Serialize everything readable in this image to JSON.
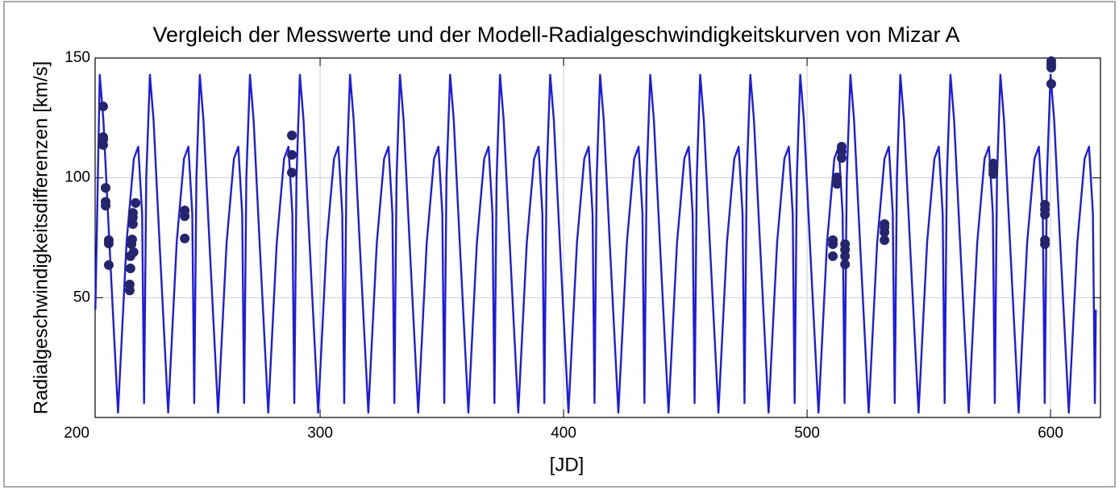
{
  "chart_data": {
    "type": "line-scatter",
    "title": "Vergleich der Messwerte und der Modell-Radialgeschwindigkeitskurven von Mizar A",
    "x_label": "[JD]",
    "y_label": "Radialgeschwindigkeitsdifferenzen [km/s]",
    "xlim": [
      207.6,
      620.5
    ],
    "ylim": [
      0,
      150
    ],
    "xticks": [
      200,
      300,
      400,
      500,
      600
    ],
    "yticks": [
      50,
      100,
      150
    ],
    "grid": true,
    "series": [
      {
        "type": "line",
        "color": "#1c1ce6",
        "x": [
          207.7,
          209.5,
          211,
          213.5,
          217,
          220.5,
          223.5,
          225.3,
          226.9,
          227.7,
          228.6,
          230.1,
          231.6,
          234.1,
          237.6,
          241.1,
          244.1,
          245.9,
          247.5,
          248.3,
          249.2,
          250.6,
          252.1,
          254.6,
          258.1,
          261.6,
          264.6,
          266.4,
          268,
          268.8,
          269.7,
          271.2,
          272.7,
          275.2,
          278.7,
          282.2,
          285.2,
          287,
          288.6,
          289.4,
          290.3,
          291.7,
          293.2,
          295.7,
          299.2,
          302.7,
          305.7,
          307.5,
          309.1,
          309.9,
          310.8,
          312.3,
          313.8,
          316.3,
          319.8,
          323.3,
          326.3,
          328.1,
          329.7,
          330.5,
          331.4,
          332.8,
          334.3,
          336.8,
          340.3,
          343.8,
          346.8,
          348.6,
          350.2,
          351,
          351.9,
          353.4,
          354.9,
          357.4,
          360.9,
          364.4,
          367.4,
          369.2,
          370.8,
          371.6,
          372.5,
          373.9,
          375.4,
          377.9,
          381.4,
          384.9,
          387.9,
          389.7,
          391.3,
          392.1,
          393,
          394.5,
          396,
          398.5,
          402,
          405.5,
          408.5,
          410.3,
          411.9,
          412.7,
          413.6,
          415,
          416.5,
          419,
          422.5,
          426,
          429,
          430.8,
          432.4,
          433.2,
          434.1,
          435.6,
          437.1,
          439.6,
          443.1,
          446.6,
          449.6,
          451.4,
          453,
          453.8,
          454.7,
          456.1,
          457.6,
          460.1,
          463.6,
          467.1,
          470.1,
          471.9,
          473.5,
          474.3,
          475.2,
          476.7,
          478.2,
          480.7,
          484.2,
          487.7,
          490.7,
          492.5,
          494.1,
          494.9,
          495.8,
          497.2,
          498.7,
          501.2,
          504.7,
          508.2,
          511.2,
          513,
          514.6,
          515.4,
          516.3,
          517.8,
          519.3,
          521.8,
          525.3,
          528.8,
          531.8,
          533.6,
          535.2,
          536,
          536.9,
          538.3,
          539.8,
          542.3,
          545.8,
          549.3,
          552.3,
          554.1,
          555.7,
          556.5,
          557.4,
          558.9,
          560.4,
          562.9,
          566.4,
          569.9,
          572.9,
          574.7,
          576.3,
          577.1,
          578,
          579.4,
          580.9,
          583.4,
          586.9,
          590.4,
          593.4,
          595.2,
          596.8,
          597.6,
          598.5,
          600,
          601.5,
          604,
          607.5,
          611,
          614,
          615.8,
          617.4,
          618.2,
          618.6
        ],
        "values": [
          45,
          143,
          124,
          72,
          2,
          73,
          108,
          113,
          85,
          6,
          100,
          143,
          124,
          72,
          2,
          73,
          108,
          113,
          85,
          6,
          100,
          143,
          124,
          72,
          2,
          73,
          108,
          113,
          85,
          6,
          100,
          143,
          124,
          72,
          2,
          73,
          108,
          113,
          85,
          6,
          100,
          143,
          124,
          72,
          2,
          73,
          108,
          113,
          85,
          6,
          100,
          143,
          124,
          72,
          2,
          73,
          108,
          113,
          85,
          6,
          100,
          143,
          124,
          72,
          2,
          73,
          108,
          113,
          85,
          6,
          100,
          143,
          124,
          72,
          2,
          73,
          108,
          113,
          85,
          6,
          100,
          143,
          124,
          72,
          2,
          73,
          108,
          113,
          85,
          6,
          100,
          143,
          124,
          72,
          2,
          73,
          108,
          113,
          85,
          6,
          100,
          143,
          124,
          72,
          2,
          73,
          108,
          113,
          85,
          6,
          100,
          143,
          124,
          72,
          2,
          73,
          108,
          113,
          85,
          6,
          100,
          143,
          124,
          72,
          2,
          73,
          108,
          113,
          85,
          6,
          100,
          143,
          124,
          72,
          2,
          73,
          108,
          113,
          85,
          6,
          100,
          143,
          124,
          72,
          2,
          73,
          108,
          113,
          85,
          6,
          100,
          143,
          124,
          72,
          2,
          73,
          108,
          113,
          85,
          6,
          100,
          143,
          124,
          72,
          2,
          73,
          108,
          113,
          85,
          6,
          100,
          143,
          124,
          72,
          2,
          73,
          108,
          113,
          85,
          6,
          100,
          143,
          124,
          72,
          2,
          73,
          108,
          113,
          85,
          6,
          100,
          143,
          124,
          72,
          2,
          73,
          108,
          113,
          85,
          6,
          45
        ]
      },
      {
        "type": "scatter",
        "color": "#25256e",
        "x": [
          210.9,
          210.9,
          210.9,
          210.9,
          211.9,
          211.9,
          211.9,
          213.2,
          213.2,
          213.2,
          221.8,
          221.8,
          222.1,
          222.1,
          222.5,
          222.8,
          223.1,
          223.1,
          223.1,
          223.4,
          224.2,
          244.4,
          244.4,
          244.4,
          288.4,
          288.4,
          288.4,
          510.6,
          510.6,
          510.6,
          512.3,
          512.3,
          512.3,
          514.2,
          514.2,
          514.2,
          515.6,
          515.6,
          515.6,
          515.6,
          531.8,
          531.8,
          531.8,
          531.8,
          576.5,
          576.5,
          576.5,
          576.5,
          597.7,
          597.7,
          597.7,
          597.7,
          597.7,
          600.3,
          600.3,
          600.3,
          600.3
        ],
        "values": [
          129.8,
          117,
          116,
          113.7,
          95.8,
          90,
          88.4,
          74,
          72.6,
          63.6,
          55.5,
          53,
          62.2,
          67.3,
          72.3,
          74.3,
          80.7,
          83.4,
          85.4,
          69,
          89.5,
          86.4,
          84,
          74.7,
          117.7,
          109.6,
          102.2,
          74,
          72.3,
          67.3,
          100.2,
          98.5,
          97.5,
          113,
          111,
          108.3,
          72.3,
          70,
          67.3,
          63.9,
          80.7,
          79.4,
          77.3,
          74,
          106,
          104.6,
          103,
          101.6,
          88.8,
          86.8,
          84.7,
          74,
          72.3,
          148.7,
          147.3,
          146,
          139.2
        ]
      }
    ]
  }
}
